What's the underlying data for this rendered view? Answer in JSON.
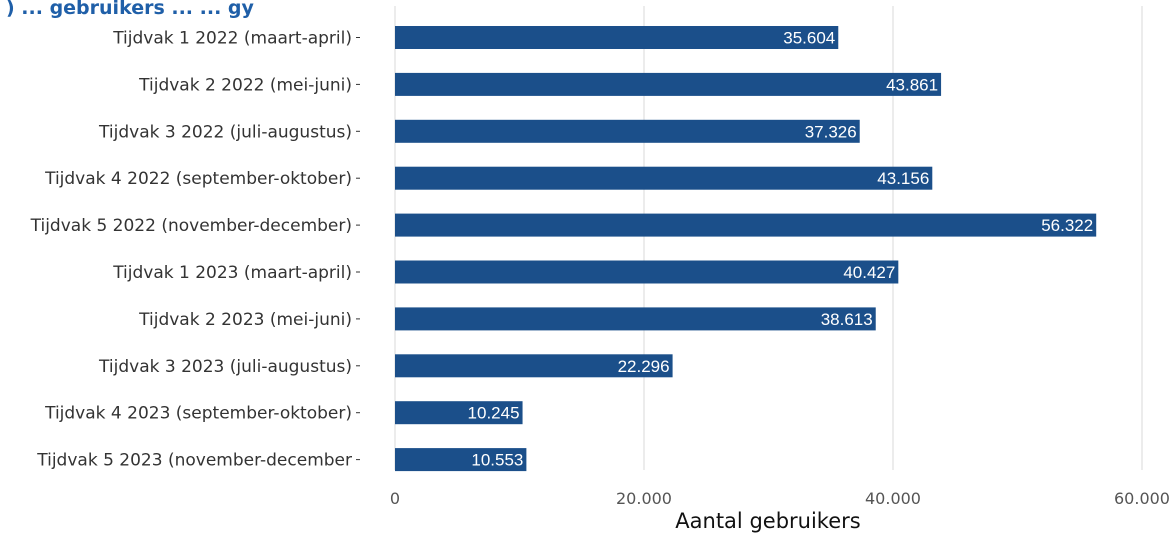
{
  "chart_data": {
    "type": "bar",
    "orientation": "horizontal",
    "title": ") ... gebruikers ... ... gy",
    "xlabel": "Aantal gebruikers",
    "categories": [
      "Tijdvak 1 2022 (maart-april)",
      "Tijdvak 2 2022 (mei-juni)",
      "Tijdvak 3 2022 (juli-augustus)",
      "Tijdvak 4 2022 (september-oktober)",
      "Tijdvak 5 2022 (november-december)",
      "Tijdvak 1 2023 (maart-april)",
      "Tijdvak 2 2023 (mei-juni)",
      "Tijdvak 3 2023 (juli-augustus)",
      "Tijdvak 4 2023 (september-oktober)",
      "Tijdvak 5 2023 (november-december"
    ],
    "values": [
      35604,
      43861,
      37326,
      43156,
      56322,
      40427,
      38613,
      22296,
      10245,
      10553
    ],
    "value_labels": [
      "35.604",
      "43.861",
      "37.326",
      "43.156",
      "56.322",
      "40.427",
      "38.613",
      "22.296",
      "10.245",
      "10.553"
    ],
    "xlim": [
      0,
      60000
    ],
    "xticks": [
      0,
      20000,
      40000,
      60000
    ],
    "xtick_labels": [
      "0",
      "20.000",
      "40.000",
      "60.000"
    ],
    "grid": "vertical",
    "bar_color": "#1b4f8a",
    "title_color": "#1f5fa8"
  }
}
